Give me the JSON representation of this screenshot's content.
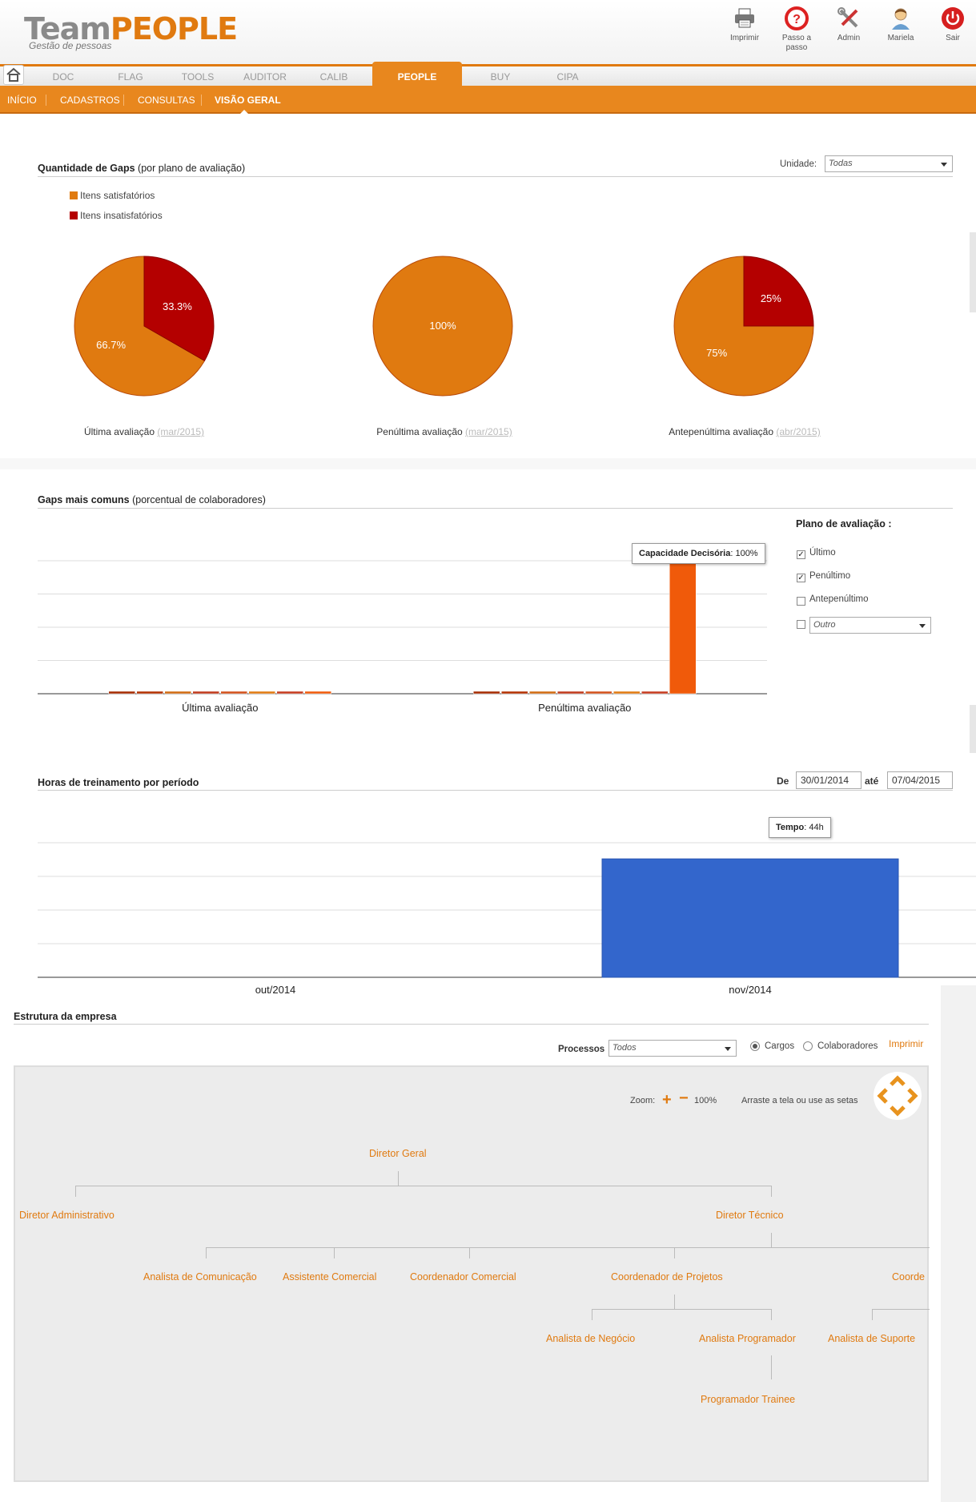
{
  "brand": {
    "name_gray": "Team",
    "name_orange": "PEOPLE",
    "tagline": "Gestão de pessoas"
  },
  "toolbar": [
    {
      "label": "Imprimir",
      "icon": "printer-icon"
    },
    {
      "label": "Passo a passo",
      "icon": "help-icon"
    },
    {
      "label": "Admin",
      "icon": "tools-icon"
    },
    {
      "label": "Mariela",
      "icon": "user-icon"
    },
    {
      "label": "Sair",
      "icon": "power-icon"
    }
  ],
  "nav": {
    "items": [
      "DOC",
      "FLAG",
      "TOOLS",
      "AUDITOR",
      "CALIB",
      "PEOPLE",
      "BUY",
      "CIPA"
    ],
    "active": "PEOPLE"
  },
  "subnav": {
    "items": [
      "INÍCIO",
      "CADASTROS",
      "CONSULTAS",
      "VISÃO GERAL"
    ],
    "active": "VISÃO GERAL"
  },
  "gaps": {
    "title_bold": "Quantidade de Gaps",
    "title_rest": " (por plano de avaliação)",
    "unit_label": "Unidade:",
    "unit_value": "Todas",
    "legend": [
      {
        "label": "Itens satisfatórios",
        "color": "#E07A10"
      },
      {
        "label": "Itens insatisfatórios",
        "color": "#B40000"
      }
    ],
    "pies": [
      {
        "caption": "Última avaliação",
        "date": "(mar/2015)",
        "slices": [
          {
            "value": 66.7,
            "label": "66.7%",
            "color": "#E07A10"
          },
          {
            "value": 33.3,
            "label": "33.3%",
            "color": "#B40000"
          }
        ]
      },
      {
        "caption": "Penúltima avaliação",
        "date": "(mar/2015)",
        "slices": [
          {
            "value": 100,
            "label": "100%",
            "color": "#E07A10"
          }
        ]
      },
      {
        "caption": "Antepenúltima avaliação",
        "date": "(abr/2015)",
        "slices": [
          {
            "value": 75,
            "label": "75%",
            "color": "#E07A10"
          },
          {
            "value": 25,
            "label": "25%",
            "color": "#B40000"
          }
        ]
      }
    ]
  },
  "common_gaps": {
    "title_bold": "Gaps mais comuns",
    "title_rest": " (porcentual de colaboradores)",
    "plan_title": "Plano de avaliação :",
    "plan_options": [
      {
        "label": "Último",
        "checked": true
      },
      {
        "label": "Penúltimo",
        "checked": true
      },
      {
        "label": "Antepenúltimo",
        "checked": false
      }
    ],
    "other_select": "Outro",
    "tooltip": {
      "bold": "Capacidade Decisória",
      "rest": ": 100%"
    }
  },
  "training": {
    "title": "Horas de treinamento por período",
    "from_label": "De",
    "from_value": "30/01/2014",
    "to_label": "até",
    "to_value": "07/04/2015",
    "tooltip": {
      "bold": "Tempo",
      "rest": ": 44h"
    }
  },
  "chart_data": [
    {
      "type": "pie",
      "title": "Última avaliação",
      "categories": [
        "Itens satisfatórios",
        "Itens insatisfatórios"
      ],
      "values": [
        66.7,
        33.3
      ]
    },
    {
      "type": "pie",
      "title": "Penúltima avaliação",
      "categories": [
        "Itens satisfatórios",
        "Itens insatisfatórios"
      ],
      "values": [
        100,
        0
      ]
    },
    {
      "type": "pie",
      "title": "Antepenúltima avaliação",
      "categories": [
        "Itens satisfatórios",
        "Itens insatisfatórios"
      ],
      "values": [
        75,
        25
      ]
    },
    {
      "type": "bar",
      "categories": [
        "Última avaliação",
        "Penúltima avaliação"
      ],
      "series": [
        {
          "values": [
            1,
            1
          ],
          "color": "#A52A00"
        },
        {
          "values": [
            1,
            1
          ],
          "color": "#B33000"
        },
        {
          "values": [
            1,
            1
          ],
          "color": "#D06A10"
        },
        {
          "values": [
            1,
            1
          ],
          "color": "#C0391B"
        },
        {
          "values": [
            1,
            1
          ],
          "color": "#D2501A"
        },
        {
          "values": [
            1,
            1
          ],
          "color": "#E07A10"
        },
        {
          "values": [
            1,
            1
          ],
          "color": "#C63A1E"
        },
        {
          "values": [
            1,
            100
          ],
          "color": "#F05A0A",
          "name": "Capacidade Decisória"
        }
      ],
      "ylim": [
        0,
        100
      ],
      "grid": true
    },
    {
      "type": "bar",
      "categories": [
        "out/2014",
        "nov/2014"
      ],
      "series": [
        {
          "name": "Tempo",
          "values": [
            0,
            44
          ],
          "color": "#3366CC"
        }
      ],
      "ylim": [
        0,
        50
      ],
      "grid": true
    }
  ],
  "structure": {
    "title": "Estrutura da empresa",
    "processes_label": "Processos",
    "processes_value": "Todos",
    "radio_options": [
      {
        "label": "Cargos",
        "on": true
      },
      {
        "label": "Colaboradores",
        "on": false
      }
    ],
    "print_label": "Imprimir",
    "zoom_label": "Zoom:",
    "zoom_value": "100%",
    "drag_hint": "Arraste a tela ou use as setas",
    "nodes": {
      "director_general": "Diretor Geral",
      "director_admin": "Diretor Administrativo",
      "director_tech": "Diretor Técnico",
      "analyst_comm": "Analista de Comunicação",
      "assistant_comm": "Assistente Comercial",
      "coord_comm": "Coordenador Comercial",
      "coord_projects": "Coordenador de Projetos",
      "coord_cut": "Coorde",
      "analyst_business": "Analista de Negócio",
      "analyst_programmer": "Analista Programador",
      "analyst_support": "Analista de Suporte",
      "programmer_trainee": "Programador Trainee"
    }
  }
}
